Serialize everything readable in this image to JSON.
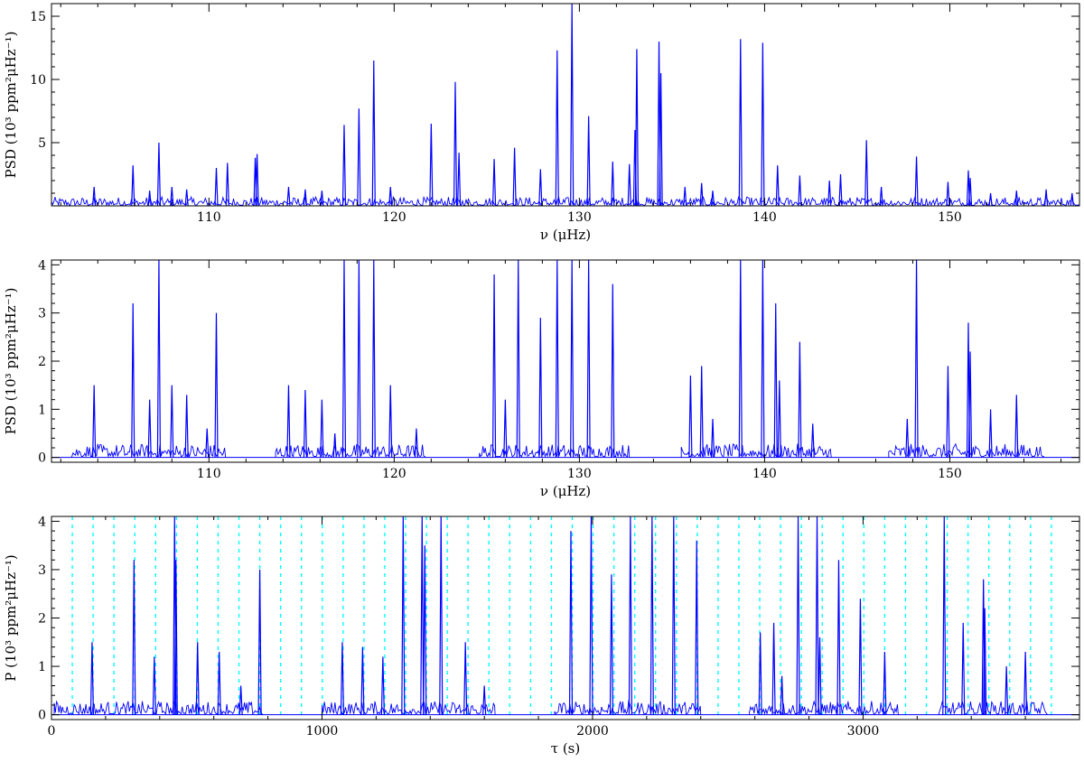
{
  "chart_data": [
    {
      "type": "line",
      "panel": "top",
      "xlabel": "ν (μHz)",
      "ylabel": "PSD (10³ ppm²μHz⁻¹)",
      "xlim": [
        101.5,
        157
      ],
      "ylim": [
        0,
        16
      ],
      "xticks": [
        110,
        120,
        130,
        140,
        150
      ],
      "yticks": [
        5,
        10,
        15
      ],
      "color": "#0000ff",
      "series": [
        {
          "baseline": 0.3,
          "peaks": [
            [
              103.8,
              1.5
            ],
            [
              105.9,
              3.2
            ],
            [
              106.8,
              1.2
            ],
            [
              107.3,
              5.0
            ],
            [
              108.0,
              1.5
            ],
            [
              108.8,
              1.3
            ],
            [
              110.4,
              3.0
            ],
            [
              111.0,
              3.4
            ],
            [
              112.5,
              3.8
            ],
            [
              112.6,
              4.1
            ],
            [
              114.3,
              1.5
            ],
            [
              115.2,
              1.3
            ],
            [
              116.1,
              1.2
            ],
            [
              117.3,
              6.4
            ],
            [
              118.1,
              7.7
            ],
            [
              118.9,
              11.5
            ],
            [
              119.8,
              1.5
            ],
            [
              122.0,
              6.5
            ],
            [
              123.3,
              9.8
            ],
            [
              123.5,
              4.2
            ],
            [
              125.4,
              3.7
            ],
            [
              126.5,
              4.6
            ],
            [
              127.9,
              2.9
            ],
            [
              128.8,
              12.3
            ],
            [
              129.6,
              16.0
            ],
            [
              130.5,
              7.1
            ],
            [
              131.8,
              3.5
            ],
            [
              132.7,
              3.3
            ],
            [
              133.1,
              12.4
            ],
            [
              133.0,
              6.0
            ],
            [
              134.3,
              13.0
            ],
            [
              134.4,
              10.5
            ],
            [
              135.7,
              1.5
            ],
            [
              136.6,
              1.8
            ],
            [
              137.2,
              1.2
            ],
            [
              138.7,
              13.2
            ],
            [
              139.9,
              12.9
            ],
            [
              140.7,
              3.2
            ],
            [
              141.9,
              2.4
            ],
            [
              143.5,
              2.0
            ],
            [
              144.1,
              2.5
            ],
            [
              145.5,
              5.2
            ],
            [
              146.3,
              1.5
            ],
            [
              148.2,
              3.9
            ],
            [
              149.9,
              1.9
            ],
            [
              151.0,
              2.8
            ],
            [
              151.1,
              2.2
            ],
            [
              152.2,
              1.0
            ],
            [
              153.6,
              1.2
            ],
            [
              155.2,
              1.3
            ],
            [
              156.6,
              1.0
            ]
          ]
        }
      ]
    },
    {
      "type": "line",
      "panel": "middle",
      "xlabel": "ν (μHz)",
      "ylabel": "PSD (10³ ppm²μHz⁻¹)",
      "xlim": [
        101.5,
        157
      ],
      "ylim": [
        -0.1,
        4.1
      ],
      "xticks": [
        110,
        120,
        130,
        140,
        150
      ],
      "yticks": [
        0,
        1,
        2,
        3,
        4
      ],
      "color": "#0000ff",
      "segments": [
        [
          102.6,
          110.9
        ],
        [
          113.6,
          121.7
        ],
        [
          124.6,
          132.7
        ],
        [
          135.5,
          143.6
        ],
        [
          146.7,
          155.1
        ]
      ],
      "series": [
        {
          "baseline": 0.12,
          "peaks": [
            [
              103.8,
              1.5
            ],
            [
              105.9,
              3.2
            ],
            [
              106.8,
              1.2
            ],
            [
              107.3,
              4.1
            ],
            [
              108.0,
              1.5
            ],
            [
              108.8,
              1.3
            ],
            [
              109.9,
              0.6
            ],
            [
              110.4,
              3.0
            ],
            [
              114.3,
              1.5
            ],
            [
              115.2,
              1.4
            ],
            [
              116.1,
              1.2
            ],
            [
              116.8,
              0.5
            ],
            [
              117.3,
              4.1
            ],
            [
              118.1,
              4.1
            ],
            [
              118.9,
              4.1
            ],
            [
              119.8,
              1.5
            ],
            [
              121.2,
              0.6
            ],
            [
              125.4,
              3.8
            ],
            [
              126.0,
              1.2
            ],
            [
              126.7,
              4.1
            ],
            [
              127.9,
              2.9
            ],
            [
              128.8,
              4.1
            ],
            [
              129.6,
              4.1
            ],
            [
              130.5,
              4.1
            ],
            [
              131.8,
              3.6
            ],
            [
              136.0,
              1.7
            ],
            [
              136.6,
              1.9
            ],
            [
              137.2,
              0.8
            ],
            [
              138.7,
              4.1
            ],
            [
              139.9,
              4.1
            ],
            [
              140.6,
              3.2
            ],
            [
              140.8,
              1.6
            ],
            [
              141.9,
              2.4
            ],
            [
              142.6,
              0.7
            ],
            [
              147.7,
              0.8
            ],
            [
              148.2,
              4.1
            ],
            [
              149.9,
              1.9
            ],
            [
              151.0,
              2.8
            ],
            [
              151.1,
              2.2
            ],
            [
              152.2,
              1.0
            ],
            [
              153.6,
              1.3
            ]
          ]
        }
      ]
    },
    {
      "type": "line",
      "panel": "bottom",
      "xlabel": "τ (s)",
      "ylabel": "P (10³ ppm²μHz⁻¹)",
      "xlim": [
        0,
        3800
      ],
      "ylim": [
        -0.1,
        4.1
      ],
      "xticks": [
        0,
        1000,
        2000,
        3000
      ],
      "yticks": [
        0,
        1,
        2,
        3,
        4
      ],
      "color": "#0000ff",
      "grid_color": "#00ffff",
      "vlines_spacing": 77,
      "vlines_start": 77,
      "vlines_count": 48,
      "segments": [
        [
          10,
          780
        ],
        [
          1000,
          1640
        ],
        [
          1860,
          2400
        ],
        [
          2580,
          3130
        ],
        [
          3280,
          3680
        ]
      ],
      "series": [
        {
          "baseline": 0.12,
          "peaks": [
            [
              150,
              1.5
            ],
            [
              305,
              3.2
            ],
            [
              380,
              1.2
            ],
            [
              455,
              4.1
            ],
            [
              460,
              3.2
            ],
            [
              540,
              1.5
            ],
            [
              620,
              1.3
            ],
            [
              700,
              0.6
            ],
            [
              770,
              3.0
            ],
            [
              1075,
              1.5
            ],
            [
              1150,
              1.4
            ],
            [
              1225,
              1.2
            ],
            [
              1300,
              4.1
            ],
            [
              1370,
              4.1
            ],
            [
              1380,
              3.5
            ],
            [
              1440,
              4.1
            ],
            [
              1530,
              1.5
            ],
            [
              1600,
              0.6
            ],
            [
              1920,
              3.8
            ],
            [
              1995,
              4.1
            ],
            [
              2070,
              2.9
            ],
            [
              2140,
              4.1
            ],
            [
              2220,
              4.1
            ],
            [
              2300,
              4.1
            ],
            [
              2385,
              3.6
            ],
            [
              2620,
              1.7
            ],
            [
              2670,
              1.9
            ],
            [
              2700,
              0.8
            ],
            [
              2760,
              4.1
            ],
            [
              2830,
              4.1
            ],
            [
              2840,
              1.6
            ],
            [
              2910,
              3.2
            ],
            [
              2990,
              2.4
            ],
            [
              3080,
              1.3
            ],
            [
              3300,
              4.1
            ],
            [
              3370,
              1.9
            ],
            [
              3445,
              2.8
            ],
            [
              3450,
              2.2
            ],
            [
              3530,
              1.0
            ],
            [
              3600,
              1.3
            ]
          ]
        }
      ]
    }
  ]
}
